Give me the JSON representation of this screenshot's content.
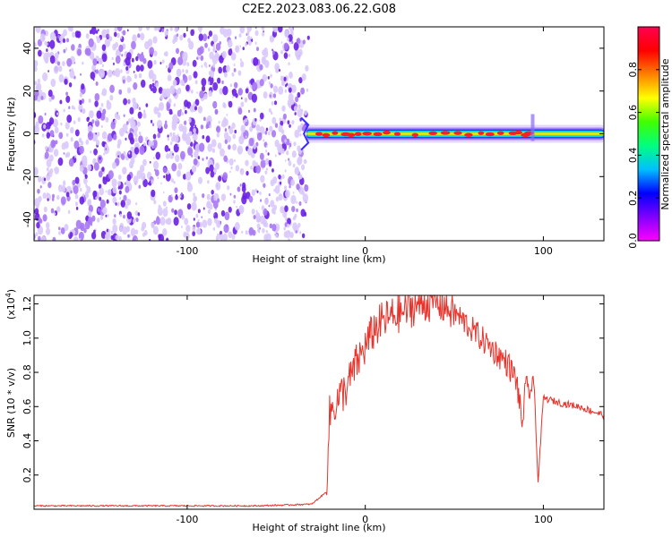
{
  "figure_title": "C2E2.2023.083.06.22.G08",
  "colors": {
    "snr_line": "#e8322a",
    "dots": "#7a2cf0",
    "frame": "#000000"
  },
  "chart_data": [
    {
      "type": "heatmap",
      "xlabel": "Height of straight line (km)",
      "ylabel": "Frequency (Hz)",
      "xlim": [
        -186,
        134
      ],
      "ylim": [
        -50,
        50
      ],
      "x_ticks": [
        -100,
        0,
        100
      ],
      "y_ticks": [
        -40,
        -20,
        0,
        20,
        40
      ],
      "noise_region_x": [
        -186,
        -33
      ],
      "signal_band_x": [
        -33,
        134
      ],
      "signal_center_hz": 0,
      "colorbar": {
        "label": "Normalized spectral amplitude",
        "range": [
          0,
          1
        ],
        "ticks": [
          0.0,
          0.2,
          0.4,
          0.6,
          0.8
        ],
        "tick_labels": [
          "0.0",
          "0.2",
          "0.4",
          "0.6",
          "0.8"
        ],
        "colormap": [
          "#ff00ff",
          "#8000ff",
          "#0000ff",
          "#00c0ff",
          "#00ff80",
          "#40ff00",
          "#ffff00",
          "#ff8000",
          "#ff0000",
          "#ff0050"
        ]
      },
      "grid": false
    },
    {
      "type": "line",
      "xlabel": "Height of straight line (km)",
      "ylabel": "SNR (10 * v/v)",
      "y_scale_label": "(x10",
      "y_scale_exp": "4",
      "y_scale_close": ")",
      "xlim": [
        -186,
        134
      ],
      "ylim": [
        0,
        1.25
      ],
      "x_ticks": [
        -100,
        0,
        100
      ],
      "y_ticks": [
        0.2,
        0.4,
        0.6,
        0.8,
        1.0,
        1.2
      ],
      "y_tick_labels": [
        "0.2",
        "0.4",
        "0.6",
        "0.8",
        "1.0",
        "1.2"
      ],
      "grid": false,
      "series": [
        {
          "x": [
            -186,
            -150,
            -100,
            -60,
            -30,
            -22,
            -20,
            -18,
            -10,
            -5,
            0,
            5,
            10,
            20,
            30,
            40,
            50,
            60,
            70,
            80,
            85,
            88,
            90,
            95,
            97,
            100,
            110,
            120,
            134
          ],
          "y": [
            0.02,
            0.02,
            0.02,
            0.02,
            0.03,
            0.1,
            0.55,
            0.6,
            0.72,
            0.85,
            0.95,
            1.05,
            1.1,
            1.15,
            1.2,
            1.22,
            1.15,
            1.05,
            0.95,
            0.85,
            0.75,
            0.5,
            0.7,
            0.7,
            0.15,
            0.65,
            0.62,
            0.6,
            0.55
          ]
        }
      ]
    }
  ]
}
